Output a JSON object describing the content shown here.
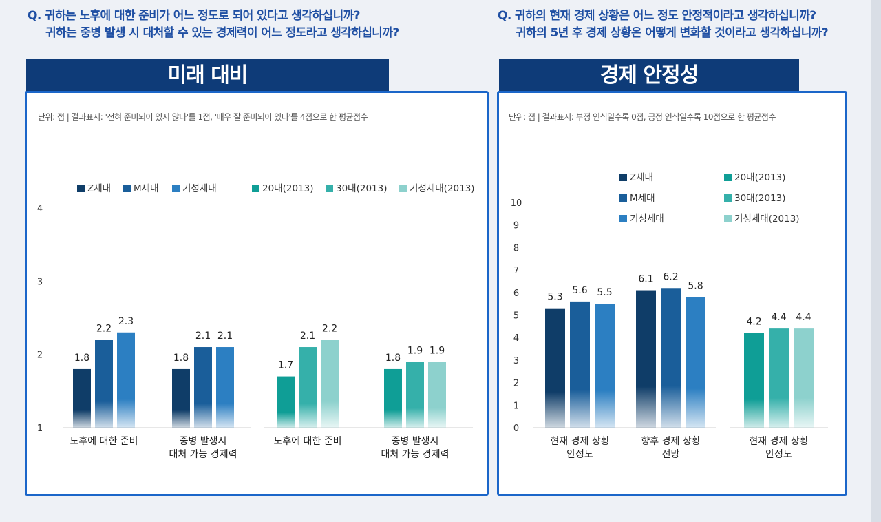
{
  "left_question": {
    "line1": "Q. 귀하는 노후에 대한 준비가 어느 정도로 되어 있다고 생각하십니까?",
    "line2": "귀하는 중병 발생 시 대처할 수 있는 경제력이 어느 정도라고 생각하십니까?"
  },
  "right_question": {
    "line1": "Q. 귀하의 현재 경제 상황은 어느 정도 안정적이라고 생각하십니까?",
    "line2": "귀하의 5년 후 경제 상황은 어떻게 변화할 것이라고 생각하십니까?"
  },
  "left_panel": {
    "title": "미래 대비",
    "note": "단위: 점 | 결과표시: '전혀 준비되어 있지 않다'를 1점, '매우 잘 준비되어 있다'를 4점으로 한 평균점수"
  },
  "right_panel": {
    "title": "경제 안정성",
    "note": "단위: 점 | 결과표시: 부정 인식일수록 0점, 긍정 인식일수록 10점으로 한 평균점수"
  },
  "colors": {
    "z": "#0f3d68",
    "m": "#1a5e9a",
    "gi": "#2c7fc2",
    "t20": "#0f9e96",
    "t30": "#35b0aa",
    "tgi": "#8dd1cd"
  },
  "chart_data": [
    {
      "type": "bar",
      "title": "미래 대비",
      "ylim": [
        1,
        4
      ],
      "yticks": [
        "1",
        "2",
        "3",
        "4"
      ],
      "legend": [
        "Z세대",
        "M세대",
        "기성세대",
        "20대(2013)",
        "30대(2013)",
        "기성세대(2013)"
      ],
      "groups": [
        {
          "label1": "노후에 대한 준비",
          "label2": "",
          "values": [
            1.8,
            2.2,
            2.3
          ],
          "series": [
            "Z세대",
            "M세대",
            "기성세대"
          ]
        },
        {
          "label1": "중병 발생시",
          "label2": "대처 가능 경제력",
          "values": [
            1.8,
            2.1,
            2.1
          ],
          "series": [
            "Z세대",
            "M세대",
            "기성세대"
          ]
        },
        {
          "label1": "노후에 대한 준비",
          "label2": "",
          "values": [
            1.7,
            2.1,
            2.2
          ],
          "series": [
            "20대(2013)",
            "30대(2013)",
            "기성세대(2013)"
          ]
        },
        {
          "label1": "중병 발생시",
          "label2": "대처 가능 경제력",
          "values": [
            1.8,
            1.9,
            1.9
          ],
          "series": [
            "20대(2013)",
            "30대(2013)",
            "기성세대(2013)"
          ]
        }
      ]
    },
    {
      "type": "bar",
      "title": "경제 안정성",
      "ylim": [
        0,
        10
      ],
      "yticks": [
        "0",
        "1",
        "2",
        "3",
        "4",
        "5",
        "6",
        "7",
        "8",
        "9",
        "10"
      ],
      "legend": [
        "Z세대",
        "M세대",
        "기성세대",
        "20대(2013)",
        "30대(2013)",
        "기성세대(2013)"
      ],
      "groups": [
        {
          "label1": "현재 경제 상황",
          "label2": "안정도",
          "values": [
            5.3,
            5.6,
            5.5
          ],
          "series": [
            "Z세대",
            "M세대",
            "기성세대"
          ]
        },
        {
          "label1": "향후 경제 상황",
          "label2": "전망",
          "values": [
            6.1,
            6.2,
            5.8
          ],
          "series": [
            "Z세대",
            "M세대",
            "기성세대"
          ]
        },
        {
          "label1": "현재 경제 상황",
          "label2": "안정도",
          "values": [
            4.2,
            4.4,
            4.4
          ],
          "series": [
            "20대(2013)",
            "30대(2013)",
            "기성세대(2013)"
          ]
        }
      ]
    }
  ]
}
